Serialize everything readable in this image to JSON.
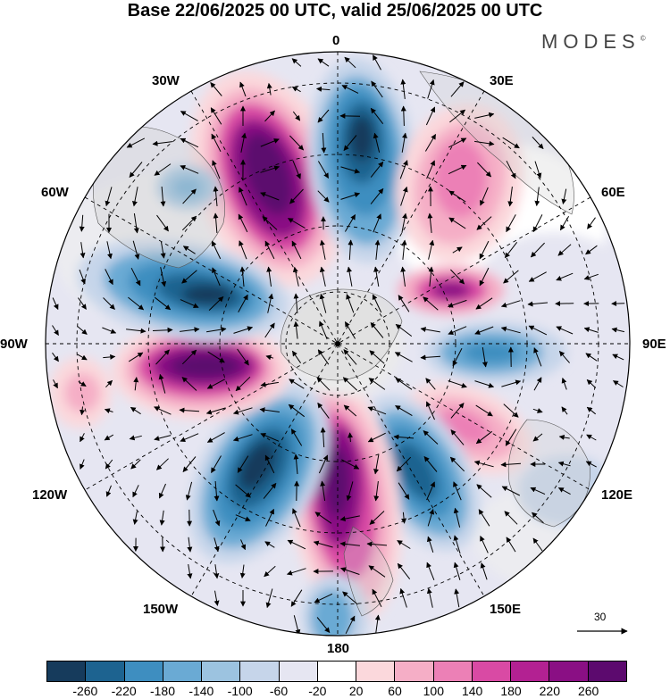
{
  "title": "Base 22/06/2025 00 UTC, valid 25/06/2025 00 UTC",
  "brand": "MODES",
  "brand_mark": "©",
  "longitude_labels": {
    "lon_0": "0",
    "lon_30e": "30E",
    "lon_60e": "60E",
    "lon_90e": "90E",
    "lon_120e": "120E",
    "lon_150e": "150E",
    "lon_180": "180",
    "lon_150w": "150W",
    "lon_120w": "120W",
    "lon_90w": "90W",
    "lon_60w": "60W",
    "lon_30w": "30W"
  },
  "reference_vector": "30",
  "colorbar": {
    "colors": [
      "#163b5c",
      "#1d6390",
      "#3e8ec0",
      "#6aaad4",
      "#9cc3e0",
      "#c6d5ea",
      "#e6e6f2",
      "#ffffff",
      "#fbd8dc",
      "#f5aec6",
      "#ec80b6",
      "#d94aa4",
      "#b32192",
      "#8a0f84",
      "#5c0a6e"
    ],
    "tick_labels": [
      "-260",
      "-220",
      "-180",
      "-140",
      "-100",
      "-60",
      "-20",
      "20",
      "60",
      "100",
      "140",
      "180",
      "220",
      "260"
    ]
  },
  "icons": {
    "north_pole": "pole-marker-icon",
    "wind_arrows": "wind-arrow-icon"
  }
}
